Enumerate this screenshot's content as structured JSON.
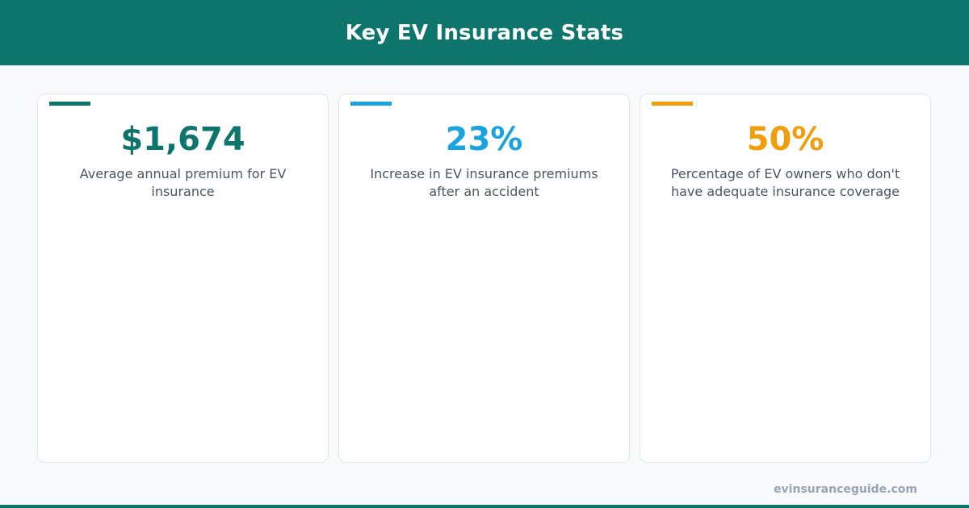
{
  "header": {
    "title": "Key EV Insurance Stats"
  },
  "cards": [
    {
      "value": "$1,674",
      "description": "Average annual premium for EV insurance"
    },
    {
      "value": "23%",
      "description": "Increase in EV insurance premiums after an accident"
    },
    {
      "value": "50%",
      "description": "Percentage of EV owners who don't have adequate insurance coverage"
    }
  ],
  "footer": {
    "source": "evinsuranceguide.com"
  }
}
